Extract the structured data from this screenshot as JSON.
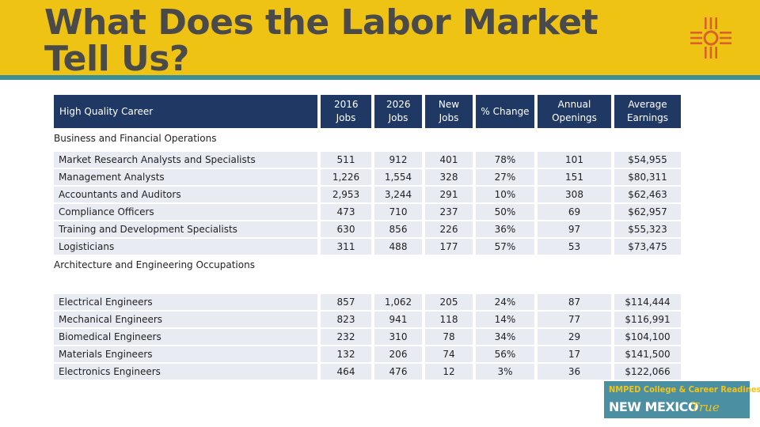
{
  "title": "What Does the Labor Market Tell Us?",
  "colors": {
    "header": "#efc314",
    "rule": "#3b8f95",
    "table_header": "#1f3864",
    "row_fill": "#e9ebf2",
    "badge": "#4b90a2"
  },
  "icons": {
    "logo": "zia-sun-symbol-icon"
  },
  "table": {
    "columns": [
      "High Quality Career",
      "2016 Jobs",
      "2026 Jobs",
      "New Jobs",
      "% Change",
      "Annual Openings",
      "Average Earnings"
    ],
    "sections": [
      {
        "name": "Business and Financial Operations",
        "rows": [
          [
            "Market Research Analysts and Specialists",
            "511",
            "912",
            "401",
            "78%",
            "101",
            "$54,955"
          ],
          [
            "Management Analysts",
            "1,226",
            "1,554",
            "328",
            "27%",
            "151",
            "$80,311"
          ],
          [
            "Accountants and Auditors",
            "2,953",
            "3,244",
            "291",
            "10%",
            "308",
            "$62,463"
          ],
          [
            "Compliance Officers",
            "473",
            "710",
            "237",
            "50%",
            "69",
            "$62,957"
          ],
          [
            "Training and Development Specialists",
            "630",
            "856",
            "226",
            "36%",
            "97",
            "$55,323"
          ],
          [
            "Logisticians",
            "311",
            "488",
            "177",
            "57%",
            "53",
            "$73,475"
          ]
        ]
      },
      {
        "name": "Architecture and Engineering Occupations",
        "rows": [
          [
            "Electrical Engineers",
            "857",
            "1,062",
            "205",
            "24%",
            "87",
            "$114,444"
          ],
          [
            "Mechanical Engineers",
            "823",
            "941",
            "118",
            "14%",
            "77",
            "$116,991"
          ],
          [
            "Biomedical Engineers",
            "232",
            "310",
            "78",
            "34%",
            "29",
            "$104,100"
          ],
          [
            "Materials Engineers",
            "132",
            "206",
            "74",
            "56%",
            "17",
            "$141,500"
          ],
          [
            "Electronics Engineers",
            "464",
            "476",
            "12",
            "3%",
            "36",
            "$122,066"
          ]
        ]
      }
    ]
  },
  "badge": {
    "line1": "NMPED College & Career Readiness is",
    "line2": "NEW MEXICO",
    "line3": "True"
  }
}
